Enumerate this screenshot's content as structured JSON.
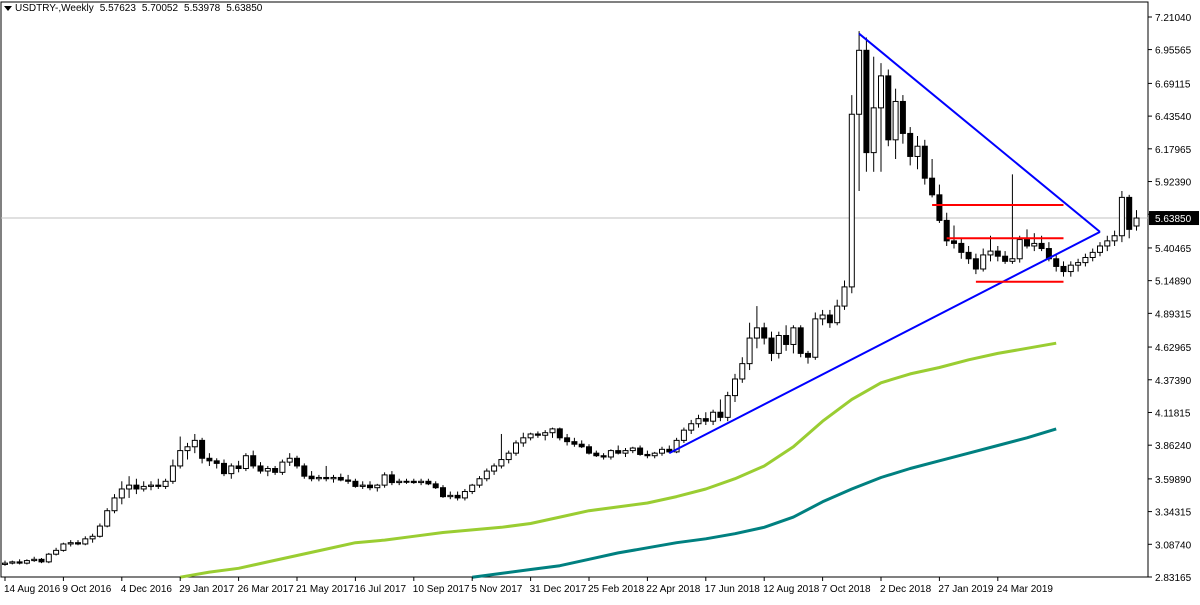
{
  "header": {
    "symbol": "USDTRY-,Weekly",
    "open": "5.57623",
    "high": "5.70052",
    "low": "5.53978",
    "close": "5.63850"
  },
  "current_price_label": "5.63850",
  "colors": {
    "candle_bull_fill": "#ffffff",
    "candle_bear_fill": "#000000",
    "ma_fast": "#9acd32",
    "ma_slow": "#008080",
    "trendline": "#0000ff",
    "range_lines": "#ff0000",
    "price_line": "#c0c0c0",
    "price_label_bg": "#000000",
    "price_label_text": "#ffffff"
  },
  "chart_data": {
    "type": "candlestick",
    "title": "USDTRY-,Weekly",
    "ylim": [
      2.8317,
      7.2104
    ],
    "y_ticks": [
      "7.21040",
      "6.95565",
      "6.69115",
      "6.43540",
      "6.17965",
      "5.92390",
      "5.66815",
      "5.40465",
      "5.14890",
      "4.89315",
      "4.62965",
      "4.37390",
      "4.11815",
      "3.86240",
      "3.59890",
      "3.34315",
      "3.08740",
      "2.83165"
    ],
    "x_ticks": [
      "14 Aug 2016",
      "9 Oct 2016",
      "4 Dec 2016",
      "29 Jan 2017",
      "26 Mar 2017",
      "21 May 2017",
      "16 Jul 2017",
      "10 Sep 2017",
      "5 Nov 2017",
      "31 Dec 2017",
      "25 Feb 2018",
      "22 Apr 2018",
      "17 Jun 2018",
      "12 Aug 2018",
      "7 Oct 2018",
      "2 Dec 2018",
      "27 Jan 2019",
      "24 Mar 2019"
    ],
    "candles_ohlc": [
      [
        2.93,
        2.96,
        2.92,
        2.94
      ],
      [
        2.94,
        2.96,
        2.93,
        2.95
      ],
      [
        2.95,
        2.97,
        2.93,
        2.94
      ],
      [
        2.94,
        2.97,
        2.93,
        2.96
      ],
      [
        2.96,
        2.99,
        2.95,
        2.97
      ],
      [
        2.97,
        2.98,
        2.94,
        2.95
      ],
      [
        2.95,
        3.02,
        2.94,
        3.01
      ],
      [
        3.01,
        3.06,
        3.0,
        3.04
      ],
      [
        3.04,
        3.1,
        3.03,
        3.09
      ],
      [
        3.09,
        3.12,
        3.07,
        3.1
      ],
      [
        3.1,
        3.12,
        3.08,
        3.09
      ],
      [
        3.09,
        3.15,
        3.08,
        3.13
      ],
      [
        3.13,
        3.17,
        3.1,
        3.15
      ],
      [
        3.15,
        3.25,
        3.14,
        3.23
      ],
      [
        3.23,
        3.37,
        3.22,
        3.35
      ],
      [
        3.35,
        3.48,
        3.33,
        3.45
      ],
      [
        3.45,
        3.58,
        3.4,
        3.52
      ],
      [
        3.52,
        3.62,
        3.45,
        3.55
      ],
      [
        3.55,
        3.6,
        3.48,
        3.52
      ],
      [
        3.52,
        3.58,
        3.5,
        3.54
      ],
      [
        3.54,
        3.58,
        3.51,
        3.55
      ],
      [
        3.55,
        3.6,
        3.52,
        3.54
      ],
      [
        3.54,
        3.6,
        3.52,
        3.58
      ],
      [
        3.58,
        3.75,
        3.56,
        3.7
      ],
      [
        3.7,
        3.93,
        3.68,
        3.82
      ],
      [
        3.82,
        3.88,
        3.75,
        3.85
      ],
      [
        3.85,
        3.95,
        3.8,
        3.9
      ],
      [
        3.9,
        3.92,
        3.72,
        3.76
      ],
      [
        3.76,
        3.8,
        3.7,
        3.74
      ],
      [
        3.74,
        3.76,
        3.68,
        3.72
      ],
      [
        3.72,
        3.75,
        3.62,
        3.64
      ],
      [
        3.64,
        3.72,
        3.6,
        3.7
      ],
      [
        3.7,
        3.74,
        3.65,
        3.68
      ],
      [
        3.68,
        3.8,
        3.66,
        3.78
      ],
      [
        3.78,
        3.82,
        3.68,
        3.7
      ],
      [
        3.7,
        3.73,
        3.64,
        3.66
      ],
      [
        3.66,
        3.7,
        3.62,
        3.68
      ],
      [
        3.68,
        3.7,
        3.63,
        3.65
      ],
      [
        3.65,
        3.75,
        3.63,
        3.73
      ],
      [
        3.73,
        3.8,
        3.7,
        3.76
      ],
      [
        3.76,
        3.78,
        3.68,
        3.7
      ],
      [
        3.7,
        3.72,
        3.6,
        3.62
      ],
      [
        3.62,
        3.66,
        3.58,
        3.6
      ],
      [
        3.6,
        3.63,
        3.58,
        3.61
      ],
      [
        3.61,
        3.7,
        3.58,
        3.6
      ],
      [
        3.6,
        3.63,
        3.57,
        3.61
      ],
      [
        3.61,
        3.64,
        3.58,
        3.59
      ],
      [
        3.59,
        3.63,
        3.56,
        3.58
      ],
      [
        3.58,
        3.6,
        3.53,
        3.54
      ],
      [
        3.54,
        3.58,
        3.52,
        3.55
      ],
      [
        3.55,
        3.58,
        3.51,
        3.53
      ],
      [
        3.53,
        3.56,
        3.5,
        3.55
      ],
      [
        3.55,
        3.65,
        3.53,
        3.63
      ],
      [
        3.63,
        3.66,
        3.55,
        3.57
      ],
      [
        3.57,
        3.6,
        3.55,
        3.58
      ],
      [
        3.58,
        3.6,
        3.56,
        3.58
      ],
      [
        3.58,
        3.6,
        3.56,
        3.57
      ],
      [
        3.57,
        3.6,
        3.55,
        3.58
      ],
      [
        3.58,
        3.6,
        3.55,
        3.56
      ],
      [
        3.56,
        3.58,
        3.52,
        3.53
      ],
      [
        3.53,
        3.55,
        3.45,
        3.46
      ],
      [
        3.46,
        3.5,
        3.44,
        3.47
      ],
      [
        3.47,
        3.5,
        3.43,
        3.45
      ],
      [
        3.45,
        3.52,
        3.43,
        3.5
      ],
      [
        3.5,
        3.56,
        3.48,
        3.55
      ],
      [
        3.55,
        3.62,
        3.53,
        3.6
      ],
      [
        3.6,
        3.68,
        3.58,
        3.66
      ],
      [
        3.66,
        3.72,
        3.63,
        3.7
      ],
      [
        3.7,
        3.95,
        3.68,
        3.75
      ],
      [
        3.75,
        3.82,
        3.72,
        3.8
      ],
      [
        3.8,
        3.9,
        3.78,
        3.88
      ],
      [
        3.88,
        3.96,
        3.85,
        3.92
      ],
      [
        3.92,
        3.96,
        3.9,
        3.95
      ],
      [
        3.95,
        3.97,
        3.92,
        3.94
      ],
      [
        3.94,
        3.98,
        3.9,
        3.96
      ],
      [
        3.96,
        4.0,
        3.92,
        3.99
      ],
      [
        3.99,
        4.0,
        3.9,
        3.92
      ],
      [
        3.92,
        3.95,
        3.86,
        3.89
      ],
      [
        3.89,
        3.92,
        3.85,
        3.87
      ],
      [
        3.87,
        3.9,
        3.84,
        3.85
      ],
      [
        3.85,
        3.87,
        3.79,
        3.8
      ],
      [
        3.8,
        3.82,
        3.77,
        3.78
      ],
      [
        3.78,
        3.8,
        3.75,
        3.77
      ],
      [
        3.77,
        3.83,
        3.75,
        3.82
      ],
      [
        3.82,
        3.86,
        3.79,
        3.8
      ],
      [
        3.8,
        3.84,
        3.77,
        3.82
      ],
      [
        3.82,
        3.85,
        3.8,
        3.84
      ],
      [
        3.84,
        3.86,
        3.78,
        3.79
      ],
      [
        3.79,
        3.82,
        3.76,
        3.78
      ],
      [
        3.78,
        3.81,
        3.76,
        3.8
      ],
      [
        3.8,
        3.85,
        3.78,
        3.83
      ],
      [
        3.83,
        3.86,
        3.8,
        3.81
      ],
      [
        3.81,
        3.92,
        3.8,
        3.9
      ],
      [
        3.9,
        4.0,
        3.88,
        3.98
      ],
      [
        3.98,
        4.06,
        3.95,
        4.03
      ],
      [
        4.03,
        4.1,
        4.0,
        4.07
      ],
      [
        4.07,
        4.12,
        4.02,
        4.05
      ],
      [
        4.05,
        4.14,
        4.02,
        4.12
      ],
      [
        4.12,
        4.22,
        4.05,
        4.08
      ],
      [
        4.08,
        4.28,
        4.05,
        4.25
      ],
      [
        4.25,
        4.42,
        4.2,
        4.38
      ],
      [
        4.38,
        4.55,
        4.35,
        4.5
      ],
      [
        4.5,
        4.82,
        4.45,
        4.7
      ],
      [
        4.7,
        4.95,
        4.62,
        4.78
      ],
      [
        4.78,
        4.82,
        4.65,
        4.7
      ],
      [
        4.7,
        4.75,
        4.52,
        4.58
      ],
      [
        4.58,
        4.75,
        4.54,
        4.72
      ],
      [
        4.72,
        4.8,
        4.6,
        4.65
      ],
      [
        4.65,
        4.8,
        4.58,
        4.78
      ],
      [
        4.78,
        4.8,
        4.55,
        4.58
      ],
      [
        4.58,
        4.6,
        4.5,
        4.55
      ],
      [
        4.55,
        4.9,
        4.53,
        4.85
      ],
      [
        4.85,
        4.92,
        4.8,
        4.88
      ],
      [
        4.88,
        4.92,
        4.78,
        4.82
      ],
      [
        4.82,
        5.0,
        4.8,
        4.95
      ],
      [
        4.95,
        5.15,
        4.92,
        5.1
      ],
      [
        5.1,
        6.6,
        5.05,
        6.45
      ],
      [
        6.45,
        7.1,
        5.85,
        6.95
      ],
      [
        6.95,
        7.05,
        6.0,
        6.15
      ],
      [
        6.15,
        6.9,
        6.0,
        6.5
      ],
      [
        6.5,
        6.85,
        6.0,
        6.75
      ],
      [
        6.75,
        6.8,
        6.2,
        6.25
      ],
      [
        6.25,
        6.65,
        6.1,
        6.55
      ],
      [
        6.55,
        6.6,
        6.22,
        6.3
      ],
      [
        6.3,
        6.35,
        6.05,
        6.12
      ],
      [
        6.12,
        6.28,
        6.02,
        6.2
      ],
      [
        6.2,
        6.25,
        5.9,
        5.95
      ],
      [
        5.95,
        6.1,
        5.8,
        5.82
      ],
      [
        5.82,
        5.9,
        5.6,
        5.62
      ],
      [
        5.62,
        5.68,
        5.42,
        5.46
      ],
      [
        5.46,
        5.58,
        5.4,
        5.44
      ],
      [
        5.44,
        5.48,
        5.32,
        5.37
      ],
      [
        5.37,
        5.42,
        5.28,
        5.32
      ],
      [
        5.32,
        5.36,
        5.2,
        5.24
      ],
      [
        5.24,
        5.4,
        5.22,
        5.35
      ],
      [
        5.35,
        5.5,
        5.3,
        5.38
      ],
      [
        5.38,
        5.42,
        5.3,
        5.34
      ],
      [
        5.34,
        5.38,
        5.28,
        5.3
      ],
      [
        5.3,
        5.98,
        5.28,
        5.32
      ],
      [
        5.32,
        5.5,
        5.29,
        5.47
      ],
      [
        5.47,
        5.55,
        5.4,
        5.42
      ],
      [
        5.42,
        5.52,
        5.38,
        5.44
      ],
      [
        5.44,
        5.5,
        5.38,
        5.4
      ],
      [
        5.4,
        5.45,
        5.3,
        5.32
      ],
      [
        5.32,
        5.36,
        5.22,
        5.26
      ],
      [
        5.26,
        5.3,
        5.18,
        5.22
      ],
      [
        5.22,
        5.3,
        5.18,
        5.27
      ],
      [
        5.27,
        5.32,
        5.22,
        5.29
      ],
      [
        5.29,
        5.36,
        5.26,
        5.33
      ],
      [
        5.33,
        5.4,
        5.3,
        5.37
      ],
      [
        5.37,
        5.45,
        5.34,
        5.42
      ],
      [
        5.42,
        5.5,
        5.38,
        5.46
      ],
      [
        5.46,
        5.54,
        5.42,
        5.5
      ],
      [
        5.5,
        5.85,
        5.45,
        5.8
      ],
      [
        5.8,
        5.82,
        5.48,
        5.55
      ],
      [
        5.57623,
        5.70052,
        5.53978,
        5.6385
      ]
    ],
    "series": [
      {
        "type": "moving_average",
        "color": "#9acd32",
        "points": [
          [
            24,
            2.83
          ],
          [
            28,
            2.87
          ],
          [
            32,
            2.9
          ],
          [
            36,
            2.95
          ],
          [
            40,
            3.0
          ],
          [
            44,
            3.05
          ],
          [
            48,
            3.1
          ],
          [
            52,
            3.12
          ],
          [
            56,
            3.15
          ],
          [
            60,
            3.18
          ],
          [
            64,
            3.2
          ],
          [
            68,
            3.22
          ],
          [
            72,
            3.25
          ],
          [
            76,
            3.3
          ],
          [
            80,
            3.35
          ],
          [
            84,
            3.38
          ],
          [
            88,
            3.41
          ],
          [
            92,
            3.46
          ],
          [
            96,
            3.52
          ],
          [
            100,
            3.6
          ],
          [
            104,
            3.7
          ],
          [
            108,
            3.85
          ],
          [
            112,
            4.05
          ],
          [
            116,
            4.22
          ],
          [
            120,
            4.35
          ],
          [
            124,
            4.42
          ],
          [
            128,
            4.47
          ],
          [
            132,
            4.53
          ],
          [
            136,
            4.58
          ],
          [
            140,
            4.62
          ],
          [
            144,
            4.66
          ]
        ]
      },
      {
        "type": "moving_average",
        "color": "#008080",
        "points": [
          [
            64,
            2.83
          ],
          [
            68,
            2.86
          ],
          [
            72,
            2.89
          ],
          [
            76,
            2.92
          ],
          [
            80,
            2.97
          ],
          [
            84,
            3.02
          ],
          [
            88,
            3.06
          ],
          [
            92,
            3.1
          ],
          [
            96,
            3.13
          ],
          [
            100,
            3.17
          ],
          [
            104,
            3.22
          ],
          [
            108,
            3.3
          ],
          [
            112,
            3.42
          ],
          [
            116,
            3.52
          ],
          [
            120,
            3.61
          ],
          [
            124,
            3.68
          ],
          [
            128,
            3.74
          ],
          [
            132,
            3.8
          ],
          [
            136,
            3.86
          ],
          [
            140,
            3.92
          ],
          [
            144,
            3.99
          ]
        ]
      }
    ],
    "trendlines": [
      {
        "color": "#0000ff",
        "points": [
          [
            91,
            3.8
          ],
          [
            150,
            5.53
          ]
        ]
      },
      {
        "color": "#0000ff",
        "points": [
          [
            117,
            7.08
          ],
          [
            150,
            5.53
          ]
        ]
      }
    ],
    "horizontal_segments": [
      {
        "color": "#ff0000",
        "y": 5.74,
        "x_from": 127,
        "x_to": 145
      },
      {
        "color": "#ff0000",
        "y": 5.48,
        "x_from": 129,
        "x_to": 145
      },
      {
        "color": "#ff0000",
        "y": 5.14,
        "x_from": 133,
        "x_to": 145
      }
    ],
    "current_price": 5.6385,
    "grid": false,
    "legend": "none"
  }
}
